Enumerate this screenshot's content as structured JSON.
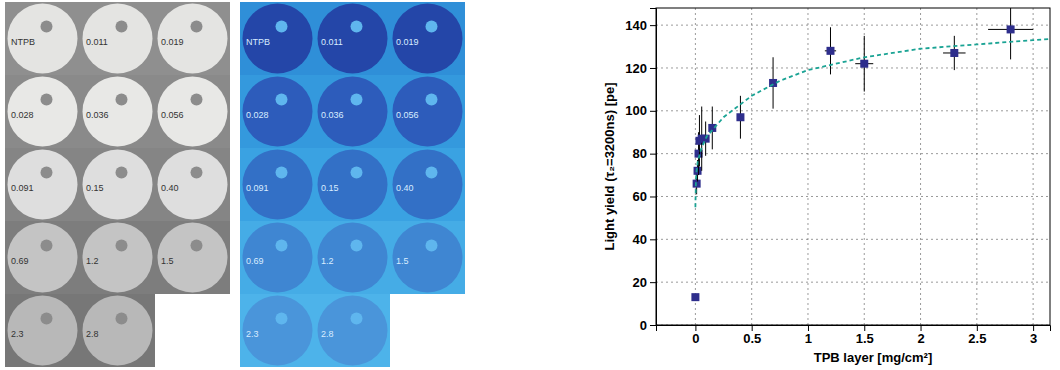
{
  "chart_data": {
    "type": "scatter",
    "x_label": "TPB layer [mg/cm²]",
    "y_label": "Light yield (τ₂=3200ns) [pe]",
    "xlim": [
      -0.35,
      3.15
    ],
    "xticks": [
      0,
      0.5,
      1,
      1.5,
      2,
      2.5,
      3
    ],
    "ylim": [
      0,
      148
    ],
    "yticks": [
      0,
      20,
      40,
      60,
      80,
      100,
      120,
      140
    ],
    "grid": true,
    "series": [
      {
        "type": "scatter",
        "color": "#2e2e8c",
        "marker": "square",
        "x": [
          0,
          0.011,
          0.019,
          0.028,
          0.036,
          0.056,
          0.091,
          0.15,
          0.4,
          0.69,
          1.2,
          1.5,
          2.3,
          2.8
        ],
        "values": [
          13,
          66,
          72,
          80,
          86,
          87,
          87,
          92,
          97,
          113,
          128,
          122,
          127,
          138
        ],
        "errors": [
          null,
          5,
          5,
          10,
          12,
          15,
          8,
          10,
          10,
          12,
          11,
          13,
          8,
          14
        ],
        "x_errors": [
          null,
          null,
          null,
          null,
          null,
          null,
          null,
          null,
          null,
          null,
          0.05,
          0.08,
          0.1,
          0.2
        ]
      },
      {
        "type": "line",
        "color": "#1aa394",
        "line_style": "dashed",
        "x": [
          0,
          0.005,
          0.01,
          0.02,
          0.05,
          0.1,
          0.25,
          0.5,
          0.75,
          1.0,
          1.5,
          2.0,
          2.5,
          3.0,
          3.15
        ],
        "values": [
          55,
          68,
          72,
          76,
          82,
          88,
          97,
          107,
          114,
          119,
          125,
          129,
          131,
          133,
          133.5
        ]
      }
    ]
  },
  "photos": {
    "labels": [
      "NTPB",
      "0.011",
      "0.019",
      "0.028",
      "0.036",
      "0.056",
      "0.091",
      "0.15",
      "0.40",
      "0.69",
      "1.2",
      "1.5",
      "2.3",
      "2.8"
    ]
  }
}
